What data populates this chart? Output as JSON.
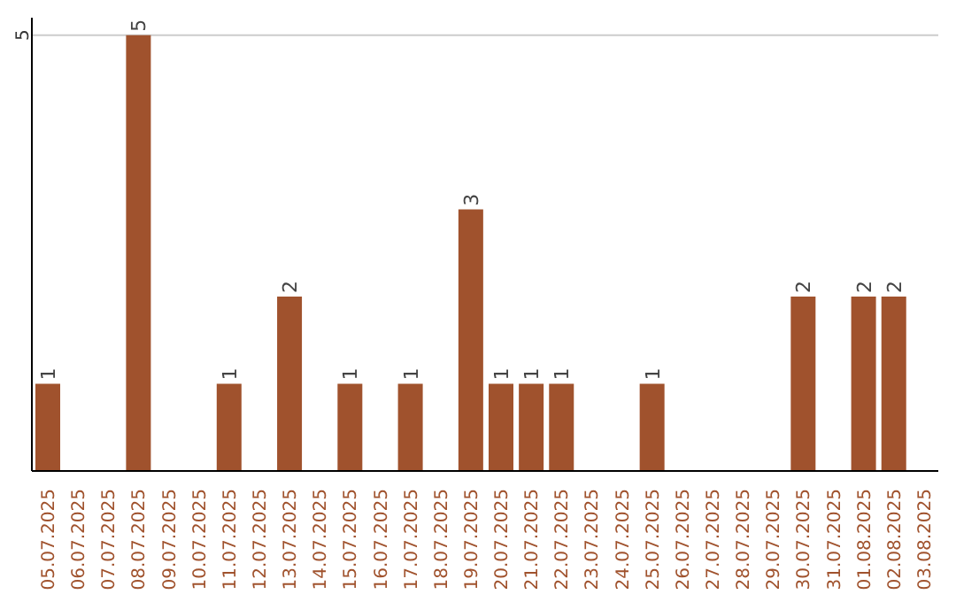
{
  "chart_data": {
    "type": "bar",
    "categories": [
      "05.07.2025",
      "06.07.2025",
      "07.07.2025",
      "08.07.2025",
      "09.07.2025",
      "10.07.2025",
      "11.07.2025",
      "12.07.2025",
      "13.07.2025",
      "14.07.2025",
      "15.07.2025",
      "16.07.2025",
      "17.07.2025",
      "18.07.2025",
      "19.07.2025",
      "20.07.2025",
      "21.07.2025",
      "22.07.2025",
      "23.07.2025",
      "24.07.2025",
      "25.07.2025",
      "26.07.2025",
      "27.07.2025",
      "28.07.2025",
      "29.07.2025",
      "30.07.2025",
      "31.07.2025",
      "01.08.2025",
      "02.08.2025",
      "03.08.2025"
    ],
    "values": [
      1,
      0,
      0,
      5,
      0,
      0,
      1,
      0,
      2,
      0,
      1,
      0,
      1,
      0,
      3,
      1,
      1,
      1,
      0,
      0,
      1,
      0,
      0,
      0,
      0,
      2,
      0,
      2,
      2,
      0
    ],
    "value_labels": [
      "1",
      null,
      null,
      "5",
      null,
      null,
      "1",
      null,
      "2",
      null,
      "1",
      null,
      "1",
      null,
      "3",
      "1",
      "1",
      "1",
      null,
      null,
      "1",
      null,
      null,
      null,
      null,
      "2",
      null,
      "2",
      "2",
      null
    ],
    "color": "#a0522d",
    "ylim": [
      0,
      5.2
    ],
    "yticks": [
      5
    ],
    "grid": "y"
  }
}
